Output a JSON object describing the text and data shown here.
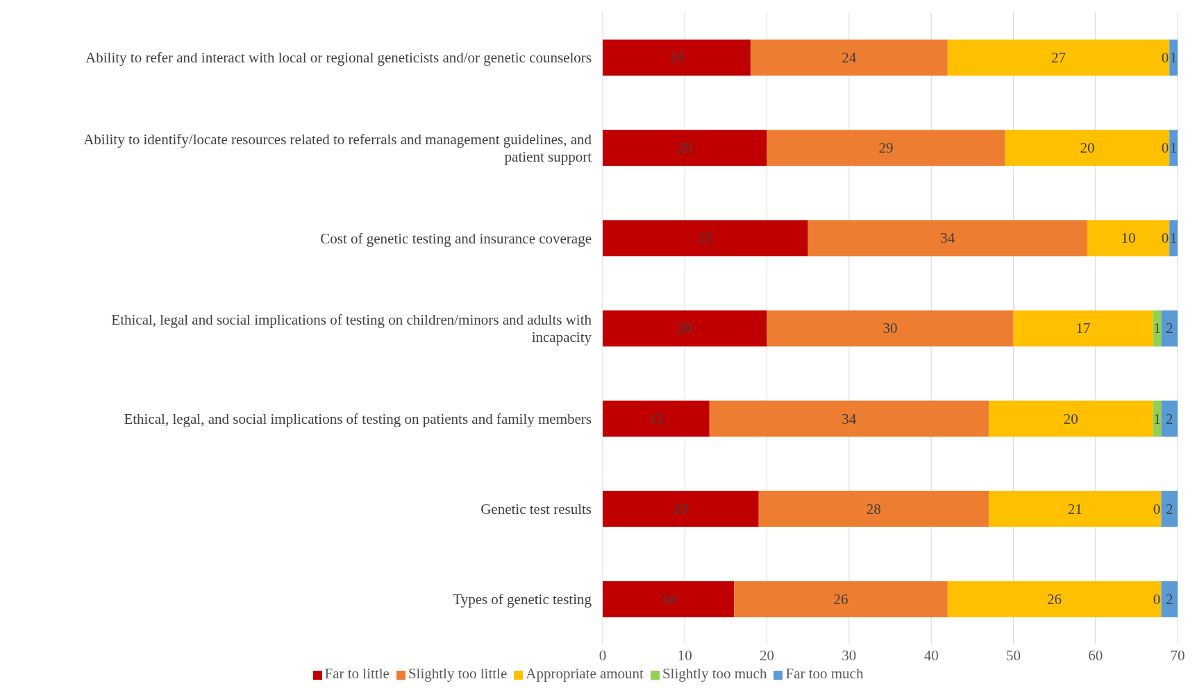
{
  "chart_data": {
    "type": "bar",
    "orientation": "horizontal",
    "stacked": true,
    "categories": [
      "Ability to refer and interact with local or regional geneticists and/or genetic counselors",
      "Ability to identify/locate resources related to referrals and management guidelines, and patient support",
      "Cost of genetic testing and insurance coverage",
      "Ethical, legal and social implications of testing on children/minors and adults with incapacity",
      "Ethical, legal, and social implications of testing on patients and family members",
      "Genetic test results",
      "Types of genetic testing"
    ],
    "series": [
      {
        "name": "Far to little",
        "color": "#c00000",
        "values": [
          18,
          20,
          25,
          20,
          13,
          19,
          16
        ]
      },
      {
        "name": "Slightly too little",
        "color": "#ed7d31",
        "values": [
          24,
          29,
          34,
          30,
          34,
          28,
          26
        ]
      },
      {
        "name": "Appropriate amount",
        "color": "#ffc000",
        "values": [
          27,
          20,
          10,
          17,
          20,
          21,
          26
        ]
      },
      {
        "name": "Slightly too much",
        "color": "#92d050",
        "values": [
          0,
          0,
          0,
          1,
          1,
          0,
          0
        ]
      },
      {
        "name": "Far too much",
        "color": "#5b9bd5",
        "values": [
          1,
          1,
          1,
          2,
          2,
          2,
          2
        ]
      }
    ],
    "xlim": [
      0,
      70
    ],
    "xticks": [
      0,
      10,
      20,
      30,
      40,
      50,
      60,
      70
    ],
    "grid": "x",
    "legend": "bottom",
    "data_labels": true
  }
}
